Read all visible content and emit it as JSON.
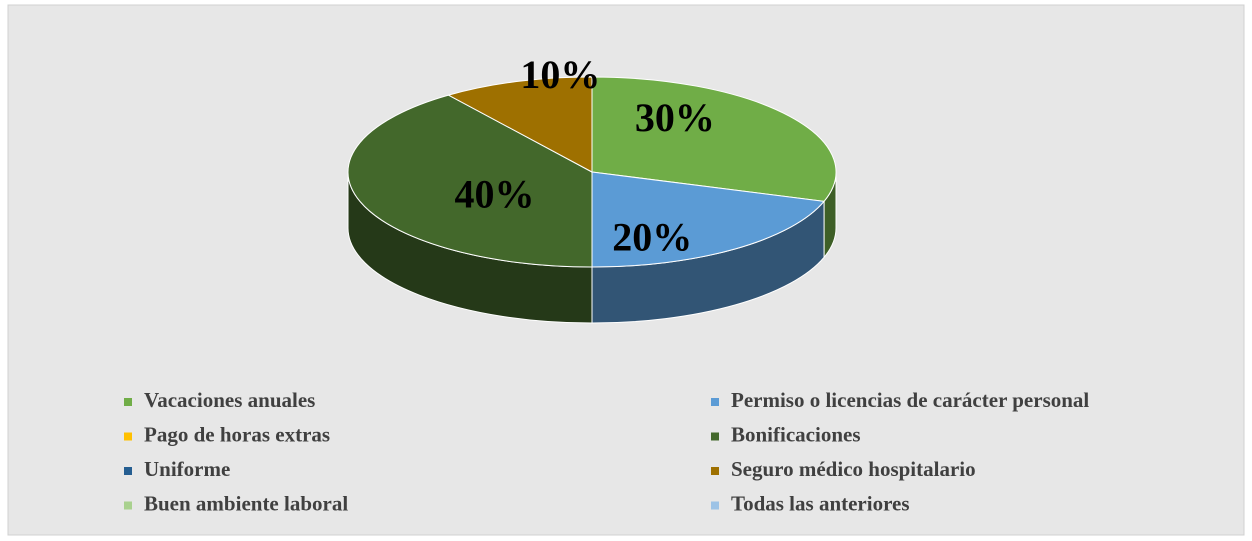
{
  "chart_data": {
    "type": "pie",
    "categories": [
      "Vacaciones anuales",
      "Permiso o licencias de carácter personal",
      "Pago de horas extras",
      "Bonificaciones",
      "Uniforme",
      "Seguro médico hospitalario",
      "Buen ambiente laboral",
      "Todas las anteriores"
    ],
    "values": [
      30,
      20,
      0,
      40,
      0,
      10,
      0,
      0
    ],
    "value_labels": [
      "30%",
      "20%",
      null,
      "40%",
      null,
      "10%",
      null,
      null
    ],
    "colors": [
      "#70ad47",
      "#5b9bd5",
      "#ffc000",
      "#43682b",
      "#255e91",
      "#9e7000",
      "#a9d18e",
      "#9dc3e6"
    ],
    "legend": "bottom"
  }
}
